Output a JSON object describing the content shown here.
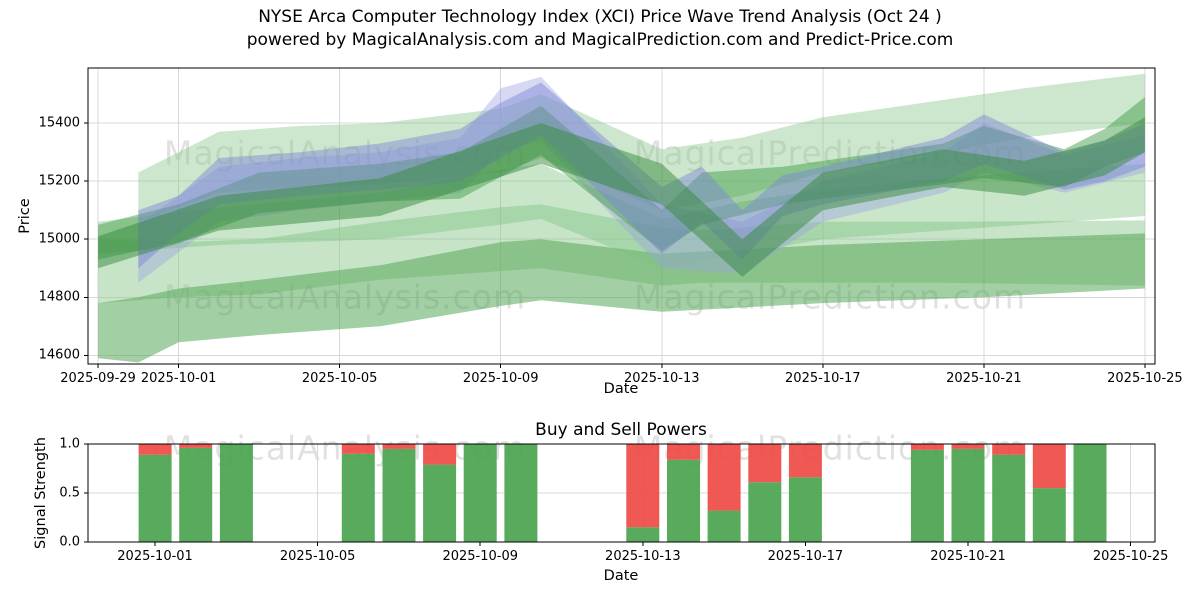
{
  "title": {
    "line1": "NYSE Arca Computer Technology Index (XCI) Price Wave Trend Analysis (Oct 24 )",
    "line2": "powered by MagicalAnalysis.com and MagicalPrediction.com and Predict-Price.com"
  },
  "watermarks": {
    "left": "MagicalAnalysis.com",
    "right": "MagicalPrediction.com"
  },
  "colors": {
    "buy_green": "#4aa44e",
    "sell_red": "#ef4a45",
    "grid": "#d8d8d8",
    "axis": "#000000"
  },
  "chart_data": [
    {
      "type": "area",
      "title": "",
      "xlabel": "Date",
      "ylabel": "Price",
      "x_origin": "2025-09-29",
      "x_ticks": [
        "2025-09-29",
        "2025-10-01",
        "2025-10-05",
        "2025-10-09",
        "2025-10-13",
        "2025-10-17",
        "2025-10-21",
        "2025-10-25"
      ],
      "y_ticks": [
        "14600",
        "14800",
        "15000",
        "15200",
        "15400"
      ],
      "ylim": [
        14570,
        15590
      ],
      "xlim_days": [
        -0.25,
        26.25
      ],
      "grid": true,
      "legend": "none",
      "bands": [
        {
          "name": "green-band-top-light",
          "color": "#8fca91",
          "opacity": 0.45,
          "points": [
            [
              "2025-09-30",
              15060,
              15230
            ],
            [
              "2025-10-02",
              15160,
              15370
            ],
            [
              "2025-10-04",
              15180,
              15390
            ],
            [
              "2025-10-06",
              15190,
              15400
            ],
            [
              "2025-10-09",
              15230,
              15450
            ],
            [
              "2025-10-10",
              15280,
              15500
            ],
            [
              "2025-10-13",
              15100,
              15310
            ],
            [
              "2025-10-15",
              15150,
              15350
            ],
            [
              "2025-10-17",
              15230,
              15420
            ],
            [
              "2025-10-20",
              15300,
              15480
            ],
            [
              "2025-10-22",
              15350,
              15520
            ],
            [
              "2025-10-25",
              15400,
              15570
            ]
          ]
        },
        {
          "name": "green-band-lower-light",
          "color": "#8fca91",
          "opacity": 0.5,
          "points": [
            [
              "2025-09-29",
              14780,
              15000
            ],
            [
              "2025-10-01",
              14800,
              14990
            ],
            [
              "2025-10-03",
              14810,
              15000
            ],
            [
              "2025-10-06",
              14860,
              15060
            ],
            [
              "2025-10-09",
              14890,
              15110
            ],
            [
              "2025-10-10",
              14900,
              15120
            ],
            [
              "2025-10-13",
              14840,
              15040
            ],
            [
              "2025-10-14",
              14850,
              15030
            ],
            [
              "2025-10-17",
              14850,
              15060
            ],
            [
              "2025-10-20",
              14850,
              15060
            ],
            [
              "2025-10-25",
              14840,
              15065
            ]
          ]
        },
        {
          "name": "green-band-lower-medium",
          "color": "#55a757",
          "opacity": 0.55,
          "points": [
            [
              "2025-09-29",
              14590,
              14780
            ],
            [
              "2025-09-30",
              14575,
              14800
            ],
            [
              "2025-10-01",
              14645,
              14830
            ],
            [
              "2025-10-03",
              14670,
              14860
            ],
            [
              "2025-10-06",
              14700,
              14910
            ],
            [
              "2025-10-09",
              14770,
              14990
            ],
            [
              "2025-10-10",
              14790,
              15000
            ],
            [
              "2025-10-13",
              14750,
              14950
            ],
            [
              "2025-10-17",
              14780,
              14980
            ],
            [
              "2025-10-21",
              14800,
              15000
            ],
            [
              "2025-10-25",
              14830,
              15020
            ]
          ]
        },
        {
          "name": "green-band-mid-light",
          "color": "#79c07c",
          "opacity": 0.4,
          "points": [
            [
              "2025-09-29",
              14950,
              15060
            ],
            [
              "2025-10-02",
              14980,
              15110
            ],
            [
              "2025-10-06",
              15000,
              15160
            ],
            [
              "2025-10-09",
              15050,
              15240
            ],
            [
              "2025-10-10",
              15070,
              15260
            ],
            [
              "2025-10-13",
              14900,
              15070
            ],
            [
              "2025-10-15",
              14950,
              15130
            ],
            [
              "2025-10-17",
              15000,
              15170
            ],
            [
              "2025-10-20",
              15030,
              15210
            ],
            [
              "2025-10-25",
              15080,
              15260
            ]
          ]
        },
        {
          "name": "blue-band-light",
          "color": "#9aa0e2",
          "opacity": 0.4,
          "points": [
            [
              "2025-09-30",
              14850,
              15050
            ],
            [
              "2025-10-02",
              15060,
              15250
            ],
            [
              "2025-10-04",
              15100,
              15280
            ],
            [
              "2025-10-06",
              15130,
              15300
            ],
            [
              "2025-10-08",
              15160,
              15350
            ],
            [
              "2025-10-09",
              15300,
              15520
            ],
            [
              "2025-10-10",
              15340,
              15560
            ],
            [
              "2025-10-13",
              14900,
              15120
            ],
            [
              "2025-10-15",
              14880,
              15060
            ],
            [
              "2025-10-17",
              15060,
              15200
            ],
            [
              "2025-10-20",
              15160,
              15300
            ],
            [
              "2025-10-21",
              15230,
              15400
            ],
            [
              "2025-10-23",
              15160,
              15290
            ],
            [
              "2025-10-25",
              15230,
              15360
            ]
          ]
        },
        {
          "name": "green-band-main",
          "color": "#46a04c",
          "opacity": 0.5,
          "points": [
            [
              "2025-09-29",
              14930,
              15050
            ],
            [
              "2025-10-01",
              14990,
              15120
            ],
            [
              "2025-10-03",
              15090,
              15230
            ],
            [
              "2025-10-06",
              15130,
              15260
            ],
            [
              "2025-10-08",
              15140,
              15300
            ],
            [
              "2025-10-10",
              15290,
              15460
            ],
            [
              "2025-10-13",
              14960,
              15100
            ],
            [
              "2025-10-14",
              15050,
              15230
            ],
            [
              "2025-10-16",
              15120,
              15250
            ],
            [
              "2025-10-17",
              15140,
              15270
            ],
            [
              "2025-10-20",
              15190,
              15330
            ],
            [
              "2025-10-21",
              15210,
              15390
            ],
            [
              "2025-10-23",
              15180,
              15310
            ],
            [
              "2025-10-24",
              15250,
              15380
            ],
            [
              "2025-10-25",
              15300,
              15490
            ]
          ]
        },
        {
          "name": "blue-band-main",
          "color": "#7b82d6",
          "opacity": 0.45,
          "points": [
            [
              "2025-09-30",
              14900,
              15100
            ],
            [
              "2025-10-01",
              15020,
              15150
            ],
            [
              "2025-10-02",
              15120,
              15280
            ],
            [
              "2025-10-04",
              15150,
              15300
            ],
            [
              "2025-10-06",
              15170,
              15330
            ],
            [
              "2025-10-08",
              15200,
              15380
            ],
            [
              "2025-10-09",
              15280,
              15470
            ],
            [
              "2025-10-10",
              15360,
              15540
            ],
            [
              "2025-10-13",
              14950,
              15180
            ],
            [
              "2025-10-14",
              15060,
              15250
            ],
            [
              "2025-10-15",
              14930,
              15100
            ],
            [
              "2025-10-16",
              15080,
              15220
            ],
            [
              "2025-10-17",
              15120,
              15250
            ],
            [
              "2025-10-20",
              15200,
              15350
            ],
            [
              "2025-10-21",
              15260,
              15430
            ],
            [
              "2025-10-23",
              15170,
              15300
            ],
            [
              "2025-10-24",
              15200,
              15340
            ],
            [
              "2025-10-25",
              15250,
              15400
            ]
          ]
        },
        {
          "name": "green-band-dark",
          "color": "#35893c",
          "opacity": 0.5,
          "points": [
            [
              "2025-09-29",
              14900,
              15010
            ],
            [
              "2025-10-02",
              15030,
              15150
            ],
            [
              "2025-10-06",
              15080,
              15210
            ],
            [
              "2025-10-10",
              15260,
              15400
            ],
            [
              "2025-10-13",
              15120,
              15260
            ],
            [
              "2025-10-15",
              14870,
              15000
            ],
            [
              "2025-10-17",
              15100,
              15230
            ],
            [
              "2025-10-20",
              15180,
              15310
            ],
            [
              "2025-10-22",
              15150,
              15270
            ],
            [
              "2025-10-24",
              15220,
              15340
            ],
            [
              "2025-10-25",
              15300,
              15420
            ]
          ]
        }
      ]
    },
    {
      "type": "bar",
      "title": "Buy and Sell Powers",
      "xlabel": "Date",
      "ylabel": "Signal Strength",
      "x_origin": "2025-09-29",
      "x_ticks": [
        "2025-10-01",
        "2025-10-05",
        "2025-10-09",
        "2025-10-13",
        "2025-10-17",
        "2025-10-21",
        "2025-10-25"
      ],
      "y_ticks": [
        "0.0",
        "0.5",
        "1.0"
      ],
      "ylim": [
        0,
        1
      ],
      "xlim_days": [
        0.35,
        26.6
      ],
      "grid": true,
      "legend": "none",
      "categories": [
        "2025-10-01",
        "2025-10-02",
        "2025-10-03",
        "2025-10-06",
        "2025-10-07",
        "2025-10-08",
        "2025-10-09",
        "2025-10-10",
        "2025-10-13",
        "2025-10-14",
        "2025-10-15",
        "2025-10-16",
        "2025-10-17",
        "2025-10-20",
        "2025-10-21",
        "2025-10-22",
        "2025-10-23",
        "2025-10-24"
      ],
      "series": [
        {
          "name": "Buy",
          "color": "#4aa44e",
          "values": [
            0.89,
            0.96,
            1.0,
            0.9,
            0.95,
            0.79,
            1.0,
            1.0,
            0.15,
            0.84,
            0.32,
            0.61,
            0.66,
            0.94,
            0.95,
            0.89,
            0.55,
            1.0
          ]
        },
        {
          "name": "Sell",
          "color": "#ef4a45",
          "values": [
            0.11,
            0.04,
            0.0,
            0.1,
            0.05,
            0.21,
            0.0,
            0.0,
            0.85,
            0.16,
            0.68,
            0.39,
            0.34,
            0.06,
            0.05,
            0.11,
            0.45,
            0.0
          ]
        }
      ]
    }
  ]
}
